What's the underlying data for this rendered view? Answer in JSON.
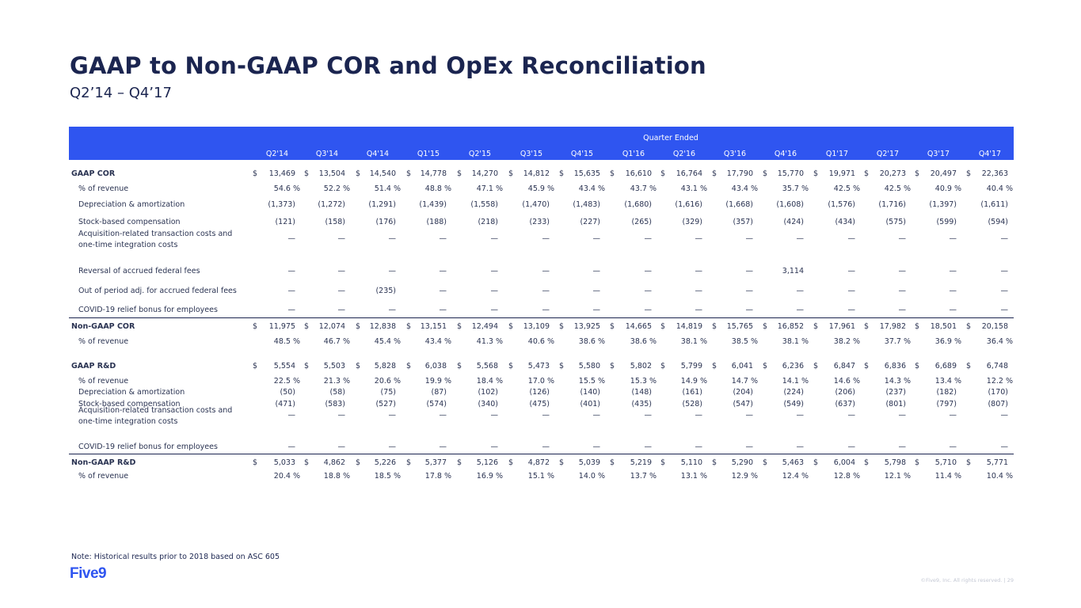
{
  "header": {
    "title": "GAAP to Non-GAAP COR and OpEx Reconciliation",
    "subtitle": "Q2’14 – Q4’17"
  },
  "table": {
    "group_header": "Quarter Ended",
    "quarters": [
      "Q2'14",
      "Q3'14",
      "Q4'14",
      "Q1'15",
      "Q2'15",
      "Q3'15",
      "Q4'15",
      "Q1'16",
      "Q2'16",
      "Q3'16",
      "Q4'16",
      "Q1'17",
      "Q2'17",
      "Q3'17",
      "Q4'17"
    ],
    "rows": [
      {
        "label": "GAAP COR",
        "style": "bold",
        "dollar": true,
        "values": [
          "13,469",
          "13,504",
          "14,540",
          "14,778",
          "14,270",
          "14,812",
          "15,635",
          "16,610",
          "16,764",
          "17,790",
          "15,770",
          "19,971",
          "20,273",
          "20,497",
          "22,363"
        ]
      },
      {
        "label": "% of revenue",
        "style": "sub",
        "pct": true,
        "values": [
          "54.6 %",
          "52.2 %",
          "51.4 %",
          "48.8 %",
          "47.1 %",
          "45.9 %",
          "43.4 %",
          "43.7 %",
          "43.1 %",
          "43.4 %",
          "35.7 %",
          "42.5 %",
          "42.5 %",
          "40.9 %",
          "40.4 %"
        ]
      },
      {
        "label": "Depreciation & amortization",
        "style": "sub",
        "values": [
          "(1,373)",
          "(1,272)",
          "(1,291)",
          "(1,439)",
          "(1,558)",
          "(1,470)",
          "(1,483)",
          "(1,680)",
          "(1,616)",
          "(1,668)",
          "(1,608)",
          "(1,576)",
          "(1,716)",
          "(1,397)",
          "(1,611)"
        ]
      },
      {
        "label": "Stock-based compensation",
        "style": "sub",
        "values": [
          "(121)",
          "(158)",
          "(176)",
          "(188)",
          "(218)",
          "(233)",
          "(227)",
          "(265)",
          "(329)",
          "(357)",
          "(424)",
          "(434)",
          "(575)",
          "(599)",
          "(594)"
        ]
      },
      {
        "label": "Acquisition-related transaction costs and",
        "label2": "one-time integration costs",
        "style": "sub",
        "values": [
          "—",
          "—",
          "—",
          "—",
          "—",
          "—",
          "—",
          "—",
          "—",
          "—",
          "—",
          "—",
          "—",
          "—",
          "—"
        ]
      },
      {
        "label": "Reversal of accrued federal fees",
        "style": "sub",
        "values": [
          "—",
          "—",
          "—",
          "—",
          "—",
          "—",
          "—",
          "—",
          "—",
          "—",
          "3,114",
          "—",
          "—",
          "—",
          "—"
        ]
      },
      {
        "label": "Out of period adj. for accrued federal fees",
        "style": "sub",
        "values": [
          "—",
          "—",
          "(235)",
          "—",
          "—",
          "—",
          "—",
          "—",
          "—",
          "—",
          "—",
          "—",
          "—",
          "—",
          "—"
        ]
      },
      {
        "label": "COVID-19 relief bonus for employees",
        "style": "sub",
        "values": [
          "—",
          "—",
          "—",
          "—",
          "—",
          "—",
          "—",
          "—",
          "—",
          "—",
          "—",
          "—",
          "—",
          "—",
          "—"
        ]
      },
      {
        "label": "Non-GAAP COR",
        "style": "bold",
        "dollar": true,
        "values": [
          "11,975",
          "12,074",
          "12,838",
          "13,151",
          "12,494",
          "13,109",
          "13,925",
          "14,665",
          "14,819",
          "15,765",
          "16,852",
          "17,961",
          "17,982",
          "18,501",
          "20,158"
        ]
      },
      {
        "label": "% of revenue",
        "style": "sub",
        "pct": true,
        "values": [
          "48.5 %",
          "46.7 %",
          "45.4 %",
          "43.4 %",
          "41.3 %",
          "40.6 %",
          "38.6 %",
          "38.6 %",
          "38.1 %",
          "38.5 %",
          "38.1 %",
          "38.2 %",
          "37.7 %",
          "36.9 %",
          "36.4 %"
        ]
      },
      {
        "label": "GAAP R&D",
        "style": "bold",
        "dollar": true,
        "values": [
          "5,554",
          "5,503",
          "5,828",
          "6,038",
          "5,568",
          "5,473",
          "5,580",
          "5,802",
          "5,799",
          "6,041",
          "6,236",
          "6,847",
          "6,836",
          "6,689",
          "6,748"
        ]
      },
      {
        "label": "% of revenue",
        "style": "sub",
        "pct": true,
        "values": [
          "22.5 %",
          "21.3 %",
          "20.6 %",
          "19.9 %",
          "18.4 %",
          "17.0 %",
          "15.5 %",
          "15.3 %",
          "14.9 %",
          "14.7 %",
          "14.1 %",
          "14.6 %",
          "14.3 %",
          "13.4 %",
          "12.2 %"
        ]
      },
      {
        "label": "Depreciation & amortization",
        "style": "sub",
        "values": [
          "(50)",
          "(58)",
          "(75)",
          "(87)",
          "(102)",
          "(126)",
          "(140)",
          "(148)",
          "(161)",
          "(204)",
          "(224)",
          "(206)",
          "(237)",
          "(182)",
          "(170)"
        ]
      },
      {
        "label": "Stock-based compensation",
        "style": "sub",
        "values": [
          "(471)",
          "(583)",
          "(527)",
          "(574)",
          "(340)",
          "(475)",
          "(401)",
          "(435)",
          "(528)",
          "(547)",
          "(549)",
          "(637)",
          "(801)",
          "(797)",
          "(807)"
        ]
      },
      {
        "label": "Acquisition-related transaction costs and",
        "label2": "one-time integration costs",
        "style": "sub",
        "values": [
          "—",
          "—",
          "—",
          "—",
          "—",
          "—",
          "—",
          "—",
          "—",
          "—",
          "—",
          "—",
          "—",
          "—",
          "—"
        ]
      },
      {
        "label": "COVID-19 relief bonus for employees",
        "style": "sub",
        "values": [
          "—",
          "—",
          "—",
          "—",
          "—",
          "—",
          "—",
          "—",
          "—",
          "—",
          "—",
          "—",
          "—",
          "—",
          "—"
        ]
      },
      {
        "label": "Non-GAAP R&D",
        "style": "bold",
        "dollar": true,
        "values": [
          "5,033",
          "4,862",
          "5,226",
          "5,377",
          "5,126",
          "4,872",
          "5,039",
          "5,219",
          "5,110",
          "5,290",
          "5,463",
          "6,004",
          "5,798",
          "5,710",
          "5,771"
        ]
      },
      {
        "label": "% of revenue",
        "style": "sub",
        "pct": true,
        "values": [
          "20.4 %",
          "18.8 %",
          "18.5 %",
          "17.8 %",
          "16.9 %",
          "15.1 %",
          "14.0 %",
          "13.7 %",
          "13.1 %",
          "12.9 %",
          "12.4 %",
          "12.8 %",
          "12.1 %",
          "11.4 %",
          "10.4 %"
        ]
      }
    ]
  },
  "note": "Note: Historical results prior to 2018 based on ASC 605",
  "logo": "Five9",
  "footer": "©Five9, Inc. All rights reserved. | 29",
  "colors": {
    "accent": "#2f55f0",
    "title": "#1b2550"
  }
}
